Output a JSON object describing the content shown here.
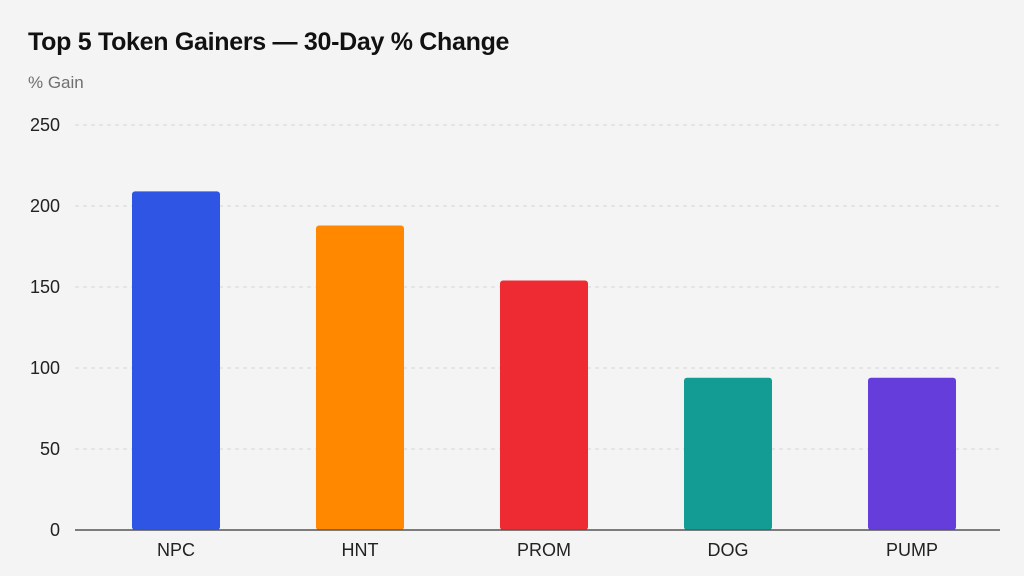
{
  "chart_data": {
    "type": "bar",
    "title": "Top 5 Token Gainers — 30-Day % Change",
    "xlabel": "",
    "ylabel": "% Gain",
    "categories": [
      "NPC",
      "HNT",
      "PROM",
      "DOG",
      "PUMP"
    ],
    "values": [
      209,
      188,
      154,
      94,
      94
    ],
    "colors": [
      "#2f55e4",
      "#ff8800",
      "#ee2a33",
      "#129c94",
      "#643ddb"
    ],
    "ylim": [
      0,
      250
    ],
    "yticks": [
      0,
      50,
      100,
      150,
      200,
      250
    ],
    "grid": true,
    "legend": "none"
  }
}
